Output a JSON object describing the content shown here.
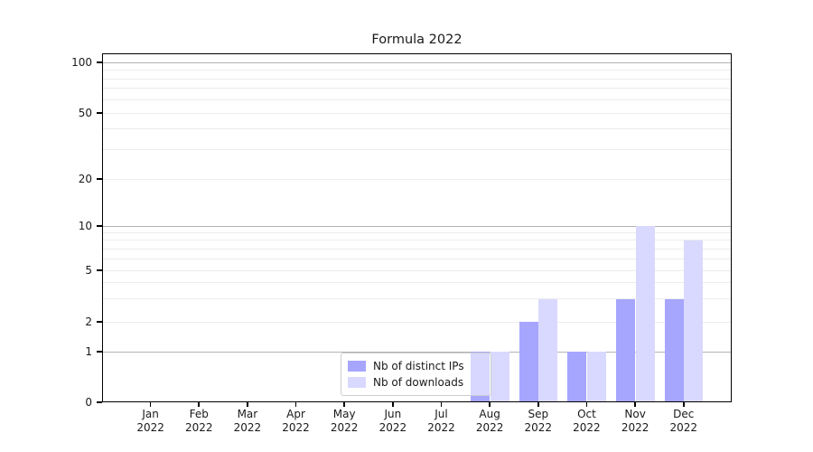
{
  "title": "Formula 2022",
  "colors": {
    "axis": "#000000",
    "text": "#1a1a1a",
    "major_grid": "#b3b3b3",
    "minor_grid": "#ececec",
    "legend_border": "#cccccc",
    "ips_bar": "#a6a6ff",
    "downloads_bar": "#d9d9ff"
  },
  "legend": {
    "items": [
      {
        "label": "Nb of distinct IPs",
        "color": "#a6a6ff"
      },
      {
        "label": "Nb of downloads",
        "color": "#d9d9ff"
      }
    ]
  },
  "chart_data": {
    "type": "bar",
    "title": "Formula 2022",
    "xlabel": "",
    "ylabel": "",
    "yscale": "symlog",
    "ylim": [
      0,
      115
    ],
    "grid": "horizontal major and minor gridlines, no vertical grid",
    "legend_position": "inside bottom-center-left",
    "categories": [
      {
        "month": "Jan",
        "year": "2022"
      },
      {
        "month": "Feb",
        "year": "2022"
      },
      {
        "month": "Mar",
        "year": "2022"
      },
      {
        "month": "Apr",
        "year": "2022"
      },
      {
        "month": "May",
        "year": "2022"
      },
      {
        "month": "Jun",
        "year": "2022"
      },
      {
        "month": "Jul",
        "year": "2022"
      },
      {
        "month": "Aug",
        "year": "2022"
      },
      {
        "month": "Sep",
        "year": "2022"
      },
      {
        "month": "Oct",
        "year": "2022"
      },
      {
        "month": "Nov",
        "year": "2022"
      },
      {
        "month": "Dec",
        "year": "2022"
      }
    ],
    "series": [
      {
        "name": "Nb of distinct IPs",
        "color": "#a6a6ff",
        "values": [
          0,
          0,
          0,
          0,
          0,
          0,
          0,
          1,
          2,
          1,
          3,
          3
        ]
      },
      {
        "name": "Nb of downloads",
        "color": "#d9d9ff",
        "values": [
          0,
          0,
          0,
          0,
          0,
          0,
          0,
          1,
          3,
          1,
          10,
          8
        ]
      }
    ],
    "yticks": [
      0,
      1,
      2,
      5,
      10,
      20,
      50,
      100
    ],
    "gridlines_major": [
      1,
      10,
      100
    ],
    "gridlines_minor": [
      2,
      3,
      4,
      5,
      6,
      7,
      8,
      9,
      20,
      30,
      40,
      50,
      60,
      70,
      80,
      90
    ]
  }
}
